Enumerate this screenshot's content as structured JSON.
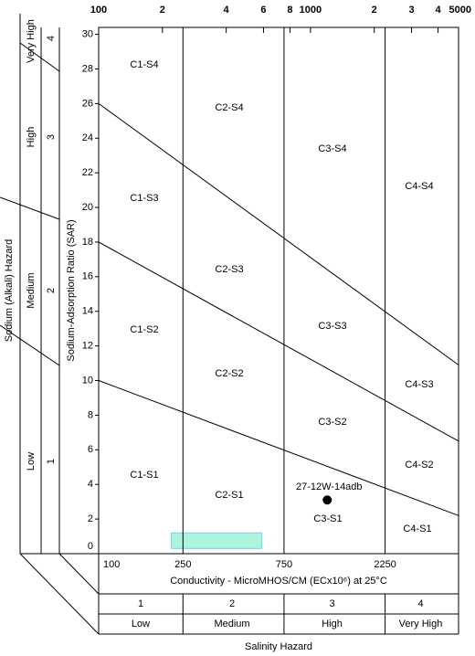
{
  "chart_data": {
    "type": "scatter",
    "x_scale": "log",
    "xlim": [
      100,
      5000
    ],
    "ylim": [
      0,
      30.4
    ],
    "xticks": [
      100,
      {
        "value": 200,
        "label": "2"
      },
      {
        "value": 400,
        "label": "4"
      },
      {
        "value": 600,
        "label": "6"
      },
      {
        "value": 800,
        "label": "8"
      },
      1000,
      {
        "value": 2000,
        "label": "2"
      },
      {
        "value": 3000,
        "label": "3"
      },
      {
        "value": 4000,
        "label": "4"
      },
      5000
    ],
    "bottom_xticks": [
      100,
      250,
      750,
      2250
    ],
    "yticks": [
      0,
      2,
      4,
      6,
      8,
      10,
      12,
      14,
      16,
      18,
      20,
      22,
      24,
      26,
      28,
      30
    ],
    "x_label": "Conductivity - MicroMHOS/CM  (ECx10⁶) at 25°C",
    "y_label": "Sodium-Adsorption Ratio (SAR)",
    "hazard_lines": {
      "x": [
        100,
        5000
      ],
      "series": [
        {
          "values": [
            10,
            2.2
          ]
        },
        {
          "values": [
            18,
            6.5
          ]
        },
        {
          "values": [
            26,
            10.9
          ]
        }
      ]
    },
    "region_labels": [
      "C1-S4",
      "C2-S4",
      "C3-S4",
      "C4-S4",
      "C1-S3",
      "C2-S3",
      "C3-S3",
      "C4-S3",
      "C1-S2",
      "C2-S2",
      "C3-S2",
      "C4-S2",
      "C1-S1",
      "C2-S1",
      "C3-S1",
      "C4-S1"
    ],
    "series": [
      {
        "name": "27-12W-14adb",
        "color": "#000000",
        "x": [
          1200
        ],
        "values": [
          3.1
        ]
      }
    ],
    "highlight": {
      "x": [
        220,
        590
      ],
      "y": [
        0.3,
        1.2
      ],
      "color": "#aaf5dc"
    },
    "salinity_hazard": {
      "title": "Salinity Hazard",
      "classes": [
        1,
        2,
        3,
        4
      ],
      "labels": [
        "Low",
        "Medium",
        "High",
        "Very High"
      ]
    },
    "sodium_hazard": {
      "title": "Sodium (Alkali) Hazard",
      "classes": [
        1,
        2,
        3,
        4
      ],
      "labels": [
        "Low",
        "Medium",
        "High",
        "Very High"
      ]
    }
  }
}
